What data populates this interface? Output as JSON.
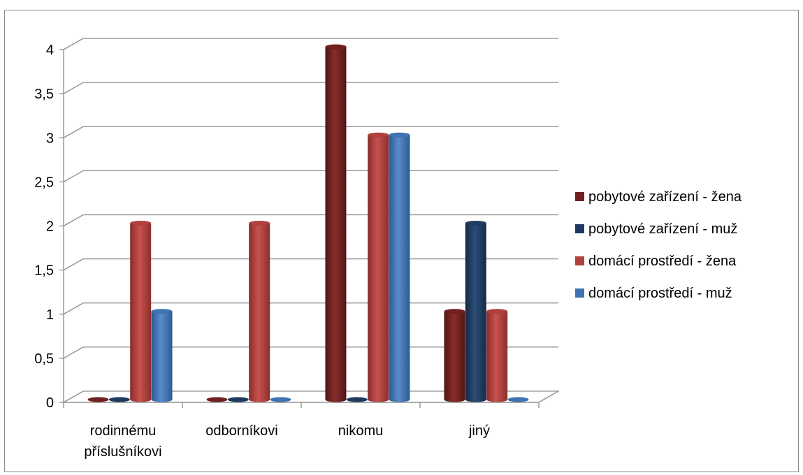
{
  "chart_data": {
    "type": "bar",
    "title": "",
    "xlabel": "",
    "ylabel": "",
    "categories": [
      "rodinnému příslušníkovi",
      "odborníkovi",
      "nikomu",
      "jiný"
    ],
    "category_lines": [
      [
        "rodinnému",
        "příslušníkovi"
      ],
      [
        "odborníkovi"
      ],
      [
        "nikomu"
      ],
      [
        "jiný"
      ]
    ],
    "series": [
      {
        "name": "pobytové zařízení - žena",
        "values": [
          0,
          0,
          4,
          1
        ],
        "color": "#70201f"
      },
      {
        "name": "pobytové zařízení - muž",
        "values": [
          0,
          0,
          0,
          2
        ],
        "color": "#1f3a5f"
      },
      {
        "name": "domácí prostředí - žena",
        "values": [
          2,
          2,
          3,
          1
        ],
        "color": "#b0403d"
      },
      {
        "name": "domácí prostředí - muž",
        "values": [
          1,
          0,
          3,
          0
        ],
        "color": "#3f72b0"
      }
    ],
    "ylim": [
      0,
      4
    ],
    "yticks": [
      "0",
      "0,5",
      "1",
      "1,5",
      "2",
      "2,5",
      "3",
      "3,5",
      "4"
    ],
    "grid": true,
    "legend_position": "right"
  }
}
